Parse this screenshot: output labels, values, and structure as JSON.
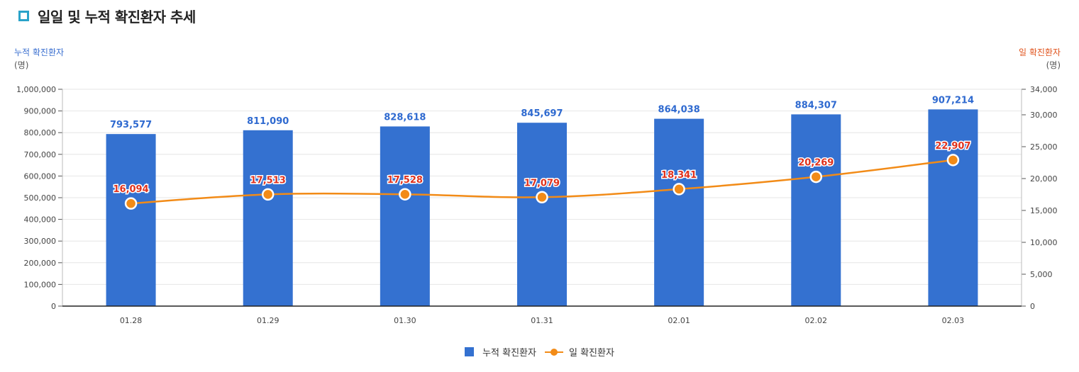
{
  "header": {
    "title": "일일 및 누적 확진환자 추세",
    "icon": "square-outline-icon"
  },
  "left_axis_caption": {
    "name": "누적 확진환자",
    "unit": "(명)"
  },
  "right_axis_caption": {
    "name": "일 확진환자",
    "unit": "(명)"
  },
  "colors": {
    "bar": "#3471d0",
    "line": "#f28b17",
    "label_blue": "#2f6ad0",
    "label_red": "#e0311c"
  },
  "chart_data": {
    "type": "bar",
    "categories": [
      "01.28",
      "01.29",
      "01.30",
      "01.31",
      "02.01",
      "02.02",
      "02.03"
    ],
    "series": [
      {
        "name": "누적 확진환자",
        "type": "bar",
        "axis": "left",
        "values": [
          793577,
          811090,
          828618,
          845697,
          864038,
          884307,
          907214
        ]
      },
      {
        "name": "일 확진환자",
        "type": "line",
        "axis": "right",
        "values": [
          16094,
          17513,
          17528,
          17079,
          18341,
          20269,
          22907
        ]
      }
    ],
    "left_axis": {
      "min": 0,
      "max": 1000000,
      "step": 100000,
      "tick_labels": [
        "0",
        "100,000",
        "200,000",
        "300,000",
        "400,000",
        "500,000",
        "600,000",
        "700,000",
        "800,000",
        "900,000",
        "1,000,000"
      ]
    },
    "right_axis": {
      "min": 0,
      "max": 34000,
      "tick_values": [
        0,
        5000,
        10000,
        15000,
        20000,
        25000,
        30000,
        34000
      ],
      "tick_labels": [
        "0",
        "5,000",
        "10,000",
        "15,000",
        "20,000",
        "25,000",
        "30,000",
        "34,000"
      ]
    },
    "bar_labels": [
      "793,577",
      "811,090",
      "828,618",
      "845,697",
      "864,038",
      "884,307",
      "907,214"
    ],
    "line_labels": [
      "16,094",
      "17,513",
      "17,528",
      "17,079",
      "18,341",
      "20,269",
      "22,907"
    ],
    "grid": true,
    "legend": {
      "position": "bottom-center",
      "items": [
        "누적 확진환자",
        "일 확진환자"
      ]
    }
  }
}
